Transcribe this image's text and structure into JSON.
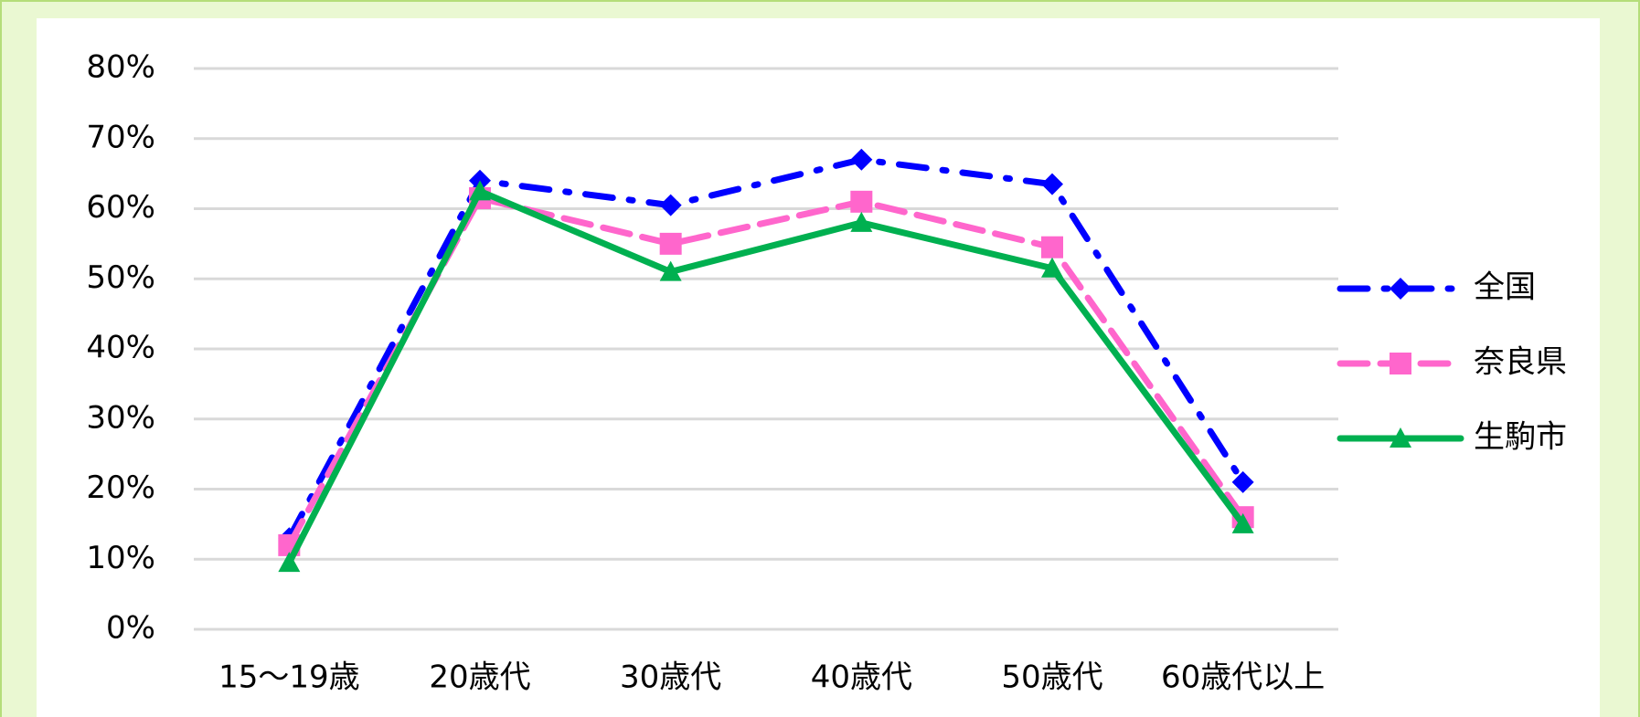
{
  "chart_data": {
    "type": "line",
    "categories": [
      "15〜19歳",
      "20歳代",
      "30歳代",
      "40歳代",
      "50歳代",
      "60歳代以上"
    ],
    "series": [
      {
        "name": "全国",
        "color": "#0000ff",
        "marker": "diamond",
        "dash": "dashdot",
        "values": [
          13,
          64,
          60.5,
          67,
          63.5,
          21
        ]
      },
      {
        "name": "奈良県",
        "color": "#ff66cc",
        "marker": "square",
        "dash": "dash",
        "values": [
          12,
          61.5,
          55,
          61,
          54.5,
          16
        ]
      },
      {
        "name": "生駒市",
        "color": "#00b050",
        "marker": "triangle",
        "dash": "solid",
        "values": [
          9.5,
          62.5,
          51,
          58,
          51.5,
          15
        ]
      }
    ],
    "ylim": [
      0,
      80
    ],
    "yticks": [
      {
        "value": 0,
        "label": "0%"
      },
      {
        "value": 10,
        "label": "10%"
      },
      {
        "value": 20,
        "label": "20%"
      },
      {
        "value": 30,
        "label": "30%"
      },
      {
        "value": 40,
        "label": "40%"
      },
      {
        "value": 50,
        "label": "50%"
      },
      {
        "value": 60,
        "label": "60%"
      },
      {
        "value": 70,
        "label": "70%"
      },
      {
        "value": 80,
        "label": "80%"
      }
    ],
    "grid": true,
    "legend": "right"
  }
}
